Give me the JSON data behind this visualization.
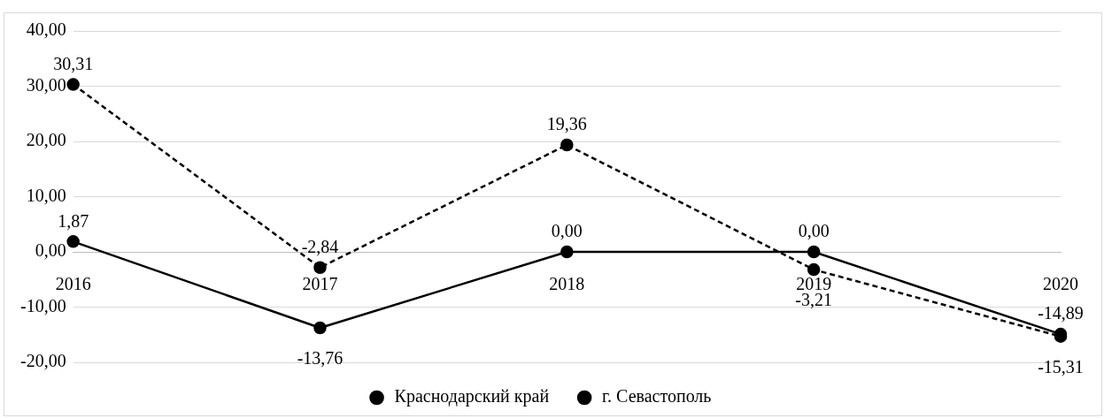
{
  "chart_data": {
    "type": "line",
    "categories": [
      "2016",
      "2017",
      "2018",
      "2019",
      "2020"
    ],
    "series": [
      {
        "name": "Краснодарский край",
        "color": "#000000",
        "line_style": "dashed",
        "values": [
          30.31,
          -2.84,
          19.36,
          -3.21,
          -15.31
        ],
        "value_labels": [
          "30,31",
          "-2,84",
          "19,36",
          "-3,21",
          "-15,31"
        ]
      },
      {
        "name": "г. Севастополь",
        "color": "#000000",
        "line_style": "solid",
        "values": [
          1.87,
          -13.76,
          0.0,
          0.0,
          -14.89
        ],
        "value_labels": [
          "1,87",
          "-13,76",
          "0,00",
          "0,00",
          "-14,89"
        ]
      }
    ],
    "ylim": [
      -20,
      40
    ],
    "yticks": [
      {
        "value": -20,
        "label": "-20,00"
      },
      {
        "value": -10,
        "label": "-10,00"
      },
      {
        "value": 0,
        "label": "0,00"
      },
      {
        "value": 10,
        "label": "10,00"
      },
      {
        "value": 20,
        "label": "20,00"
      },
      {
        "value": 30,
        "label": "30,00"
      },
      {
        "value": 40,
        "label": "40,00"
      }
    ],
    "grid": "y",
    "legend": "bottom",
    "marker": "circle",
    "data_labels": true
  }
}
